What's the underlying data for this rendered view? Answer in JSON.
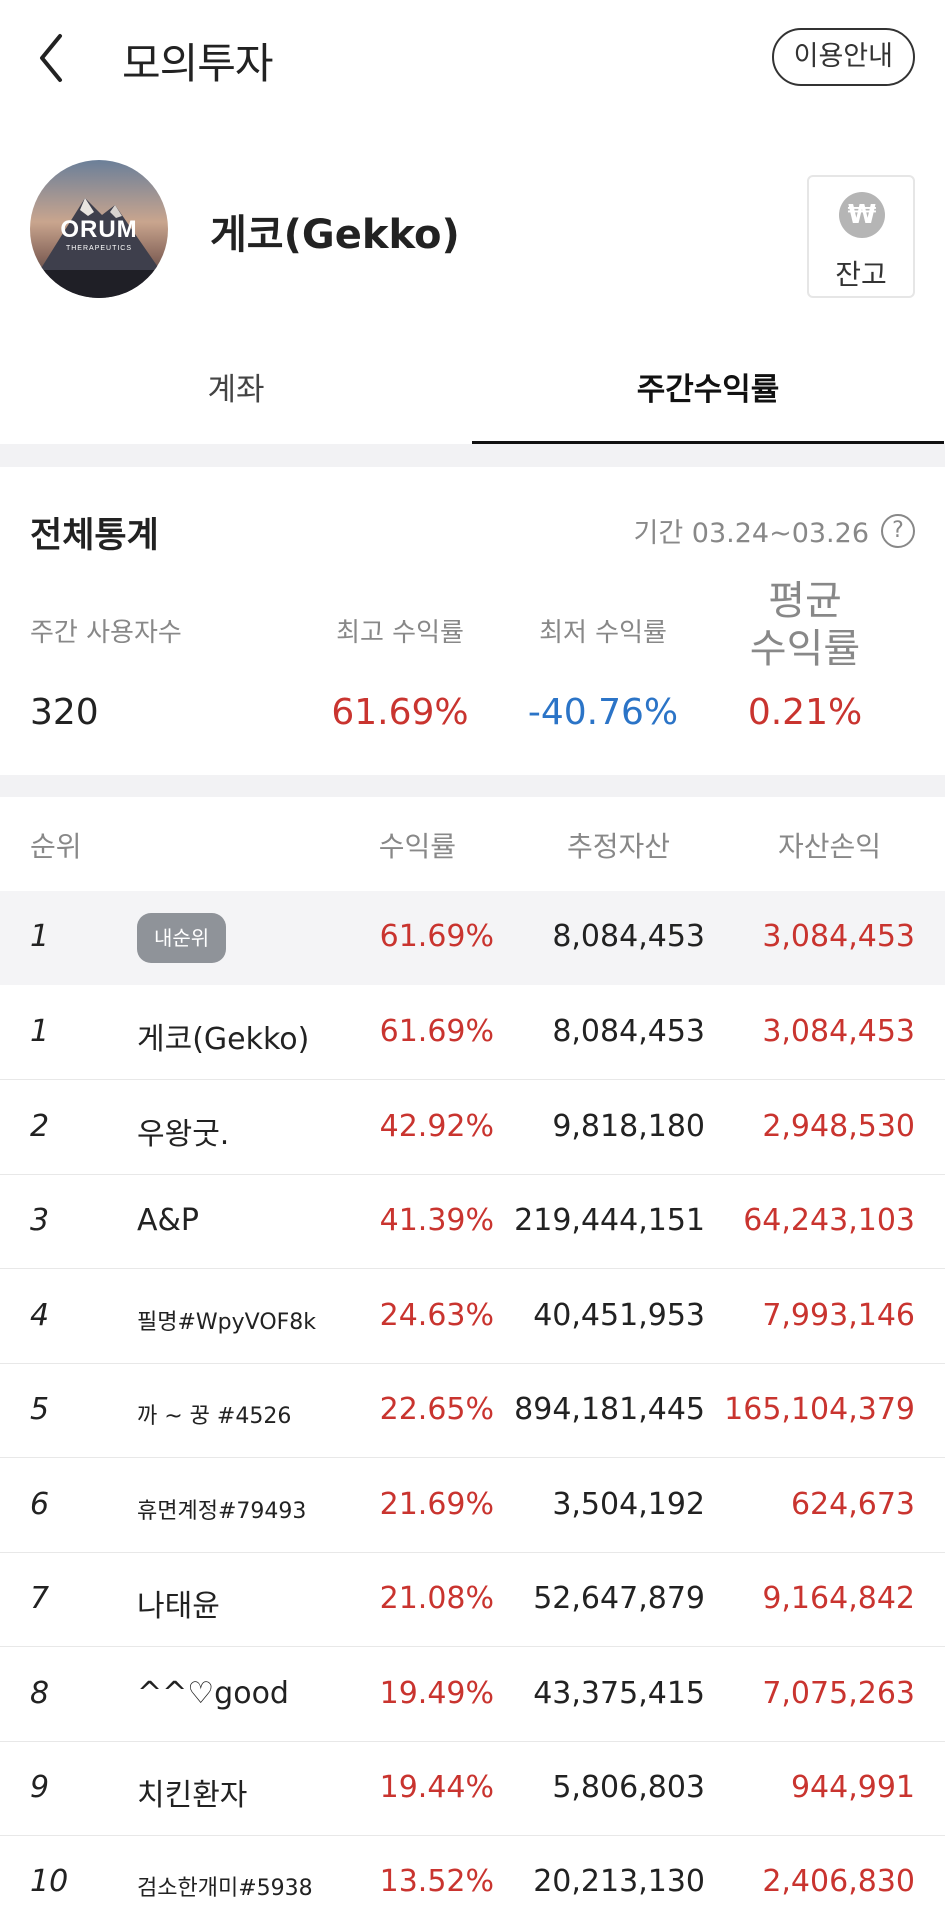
{
  "header": {
    "title": "모의투자",
    "guide_label": "이용안내"
  },
  "profile": {
    "name": "게코(Gekko)",
    "avatar_text": "ORUM",
    "avatar_subtext": "THERAPEUTICS",
    "balance_symbol": "₩",
    "balance_label": "잔고"
  },
  "tabs": [
    {
      "label": "계좌",
      "active": false
    },
    {
      "label": "주간수익률",
      "active": true
    }
  ],
  "stats": {
    "title": "전체통계",
    "period": "기간 03.24~03.26",
    "users_label": "주간 사용자수",
    "users_value": "320",
    "max_label": "최고 수익률",
    "max_value": "61.69%",
    "min_label": "최저 수익률",
    "min_value": "-40.76%",
    "avg_label": "평균\n수익률",
    "avg_value": "0.21%"
  },
  "table": {
    "headers": {
      "rank": "순위",
      "rate": "수익률",
      "asset": "추정자산",
      "pnl": "자산손익"
    },
    "my_rank": {
      "rank": "1",
      "badge": "내순위",
      "rate": "61.69%",
      "asset": "8,084,453",
      "pnl": "3,084,453"
    },
    "rows": [
      {
        "rank": "1",
        "name": "게코(Gekko)",
        "rate": "61.69%",
        "asset": "8,084,453",
        "pnl": "3,084,453"
      },
      {
        "rank": "2",
        "name": "우왕굿.",
        "rate": "42.92%",
        "asset": "9,818,180",
        "pnl": "2,948,530"
      },
      {
        "rank": "3",
        "name": "A&P",
        "rate": "41.39%",
        "asset": "219,444,151",
        "pnl": "64,243,103"
      },
      {
        "rank": "4",
        "name": "필명#WpyVOF8k",
        "rate": "24.63%",
        "asset": "40,451,953",
        "pnl": "7,993,146"
      },
      {
        "rank": "5",
        "name": "까 ~ 꿍 #4526",
        "rate": "22.65%",
        "asset": "894,181,445",
        "pnl": "165,104,379"
      },
      {
        "rank": "6",
        "name": "휴면계정#79493",
        "rate": "21.69%",
        "asset": "3,504,192",
        "pnl": "624,673"
      },
      {
        "rank": "7",
        "name": "나태윤",
        "rate": "21.08%",
        "asset": "52,647,879",
        "pnl": "9,164,842"
      },
      {
        "rank": "8",
        "name": "^^♡good",
        "rate": "19.49%",
        "asset": "43,375,415",
        "pnl": "7,075,263"
      },
      {
        "rank": "9",
        "name": "치킨환자",
        "rate": "19.44%",
        "asset": "5,806,803",
        "pnl": "944,991"
      },
      {
        "rank": "10",
        "name": "검소한개미#5938",
        "rate": "13.52%",
        "asset": "20,213,130",
        "pnl": "2,406,830"
      }
    ]
  }
}
